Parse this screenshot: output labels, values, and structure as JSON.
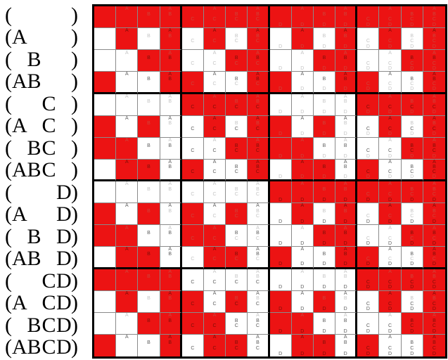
{
  "labels": {
    "open": "(",
    "close": ")",
    "alphabet": [
      "A",
      "B",
      "C",
      "D"
    ]
  },
  "colors": {
    "cell_red": "#ec1313",
    "cell_white": "#ffffff",
    "letter_dark_on_red": "#7d0f08",
    "letter_light_on_red": "#cc463c",
    "letter_dark_on_white": "#5f5f5f",
    "letter_light_on_white": "#c5c5c5",
    "grid_line": "#8a8a8a",
    "block_line": "#000000",
    "label_text": "#000000"
  },
  "chart_data": {
    "type": "heatmap",
    "rows": [
      "",
      "A",
      "B",
      "AB",
      "C",
      "AC",
      "BC",
      "ABC",
      "D",
      "AD",
      "BD",
      "ABD",
      "CD",
      "ACD",
      "BCD",
      "ABCD"
    ],
    "cols": [
      "",
      "A",
      "B",
      "AB",
      "C",
      "AC",
      "BC",
      "ABC",
      "D",
      "AD",
      "BD",
      "ABD",
      "CD",
      "ACD",
      "BCD",
      "ABCD"
    ],
    "row_label_format": "parenthesized set with fixed letter slots, e.g. (A  CD)",
    "matrix": [
      "RRRRRRRRRRRRRRRR",
      "WRWRWRWRWRWRWRWR",
      "WWRRWWRRWWRRWWRR",
      "RWWRRWWRRWWRRWWR",
      "WWWWRRRRWWWWRRRR",
      "RWRWWRWRRWRWWRWR",
      "RRWWWWRRRRWWWWRR",
      "WRRWRWWRWRRWRWWR",
      "WWWWWWWWRRRRRRRR",
      "RWRWRWRWWRWRWRWR",
      "RRWWRRWWWWRRWWRR",
      "WRRWWRRWRWWRRWWR",
      "RRRRWWWWWWWWRRRR",
      "WRWRRWRWRWRWWRWR",
      "WWRRRRWWRRWWWWRR",
      "RWWRWRRWWRRWRWWR"
    ],
    "palette": {
      "R": "#ec1313",
      "W": "#ffffff"
    },
    "cell_text": "each cell shows its column's letters stacked in fixed A/B/C/D slots; a letter is dark when it also belongs to the row set, light otherwise",
    "legend_position": "none",
    "grid": "thin gray cell lines, thick black lines around each 4x4 block and outer edge"
  }
}
